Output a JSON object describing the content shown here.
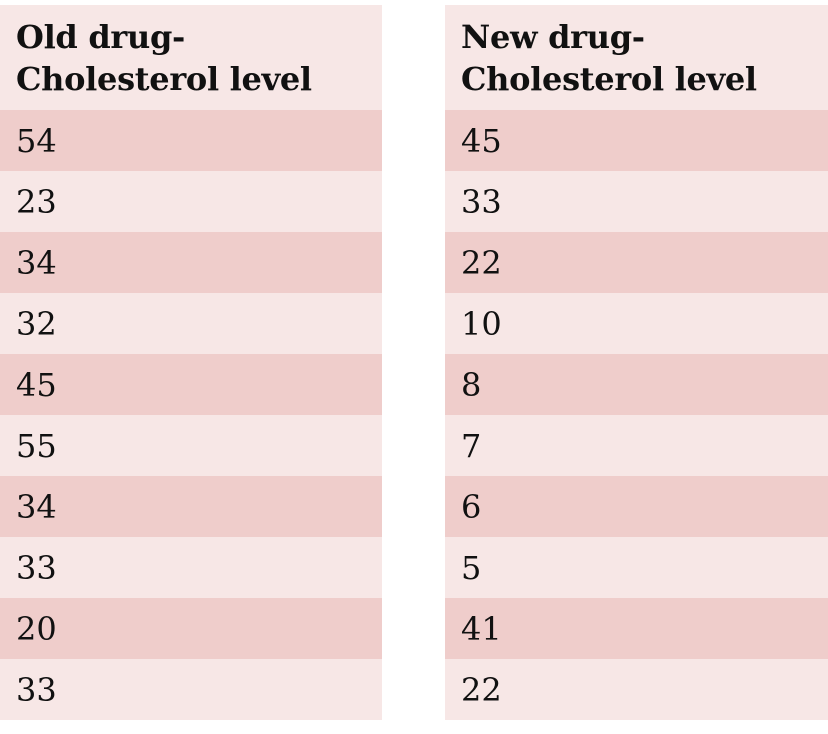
{
  "colors": {
    "row_dark": "#efcdcb",
    "row_light": "#f7e7e6",
    "text": "#111111"
  },
  "old_table": {
    "header_line1": "Old drug-",
    "header_line2": "Cholesterol level",
    "values": [
      "54",
      "23",
      "34",
      "32",
      "45",
      "55",
      "34",
      "33",
      "20",
      "33"
    ]
  },
  "new_table": {
    "header_line1": "New drug-",
    "header_line2": "Cholesterol level",
    "values": [
      "45",
      "33",
      "22",
      "10",
      "8",
      "7",
      "6",
      "5",
      "41",
      "22"
    ]
  }
}
